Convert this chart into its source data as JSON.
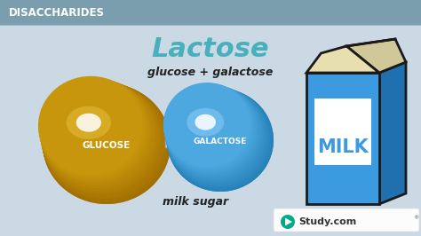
{
  "title": "Lactose",
  "subtitle": "glucose + galactose",
  "header": "DISACCHARIDES",
  "label_below": "milk sugar",
  "glucose_label": "GLUCOSE",
  "galactose_label": "GALACTOSE",
  "milk_label": "MILK",
  "glucose_color_dark": "#B8850A",
  "glucose_color_mid": "#C8960C",
  "glucose_color_light": "#E8C040",
  "galactose_color_dark": "#3A8AC0",
  "galactose_color_mid": "#4EA8E0",
  "galactose_color_light": "#90D0F8",
  "bg_color": "#CBD9E5",
  "title_color": "#48B0BC",
  "header_color": "#FFFFFF",
  "header_bg_top": "#7A9EAE",
  "header_bg_bot": "#6A8E9E",
  "bond_color": "#B0B8C0",
  "milk_blue": "#3C9AE0",
  "milk_blue_dark": "#2070B0",
  "milk_carton_bg": "#E8DFB0",
  "milk_text_color": "#FFFFFF",
  "outline_color": "#1A1A1A",
  "studycom_green": "#00AA88"
}
